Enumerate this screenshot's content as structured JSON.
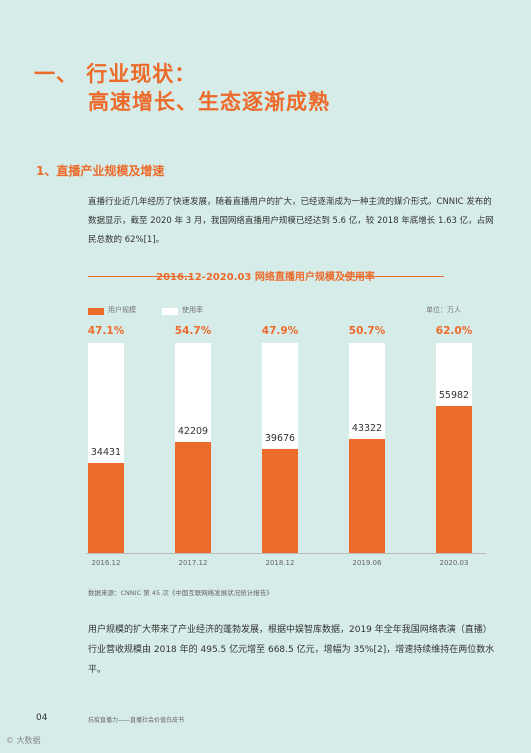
{
  "heading": {
    "line1": "一、 行业现状：",
    "line2": "高速增长、生态逐渐成熟"
  },
  "section": {
    "title": "1、直播产业规模及增速"
  },
  "paragraph1": "直播行业近几年经历了快速发展，随着直播用户的扩大，已经逐渐成为一种主流的媒介形式。CNNIC 发布的数据显示，截至 2020 年 3 月，我国网络直播用户规模已经达到 5.6 亿，较 2018 年底增长 1.63 亿，占网民总数的 62%[1]。",
  "chart_data": {
    "type": "bar",
    "title": "2016.12-2020.03 网络直播用户规模及使用率",
    "unit": "单位：万人",
    "categories": [
      "2016.12",
      "2017.12",
      "2018.12",
      "2019.06",
      "2020.03"
    ],
    "series": [
      {
        "name": "用户规模",
        "values": [
          34431,
          42209,
          39676,
          43322,
          55982
        ],
        "color": "#ec6a2a"
      },
      {
        "name": "使用率",
        "values": [
          "47.1%",
          "54.7%",
          "47.9%",
          "50.7%",
          "62.0%"
        ],
        "color": "#ffffff"
      }
    ],
    "ylim": [
      0,
      80000
    ],
    "legend": "top-left",
    "grid": false
  },
  "source": "数据来源：CNNIC 第 45 次《中国互联网络发展状况统计报告》",
  "paragraph2": "用户规模的扩大带来了产业经济的蓬勃发展，根据中娱智库数据，2019 年全年我国网络表演（直播）行业营收规模由 2018 年的 495.5 亿元增至 668.5 亿元，增幅为 35%[2]，增速持续维持在两位数水平。",
  "footer": {
    "page": "04",
    "text": "抗疫直播力——直播社会价值白皮书"
  },
  "watermark": "© 大数据"
}
